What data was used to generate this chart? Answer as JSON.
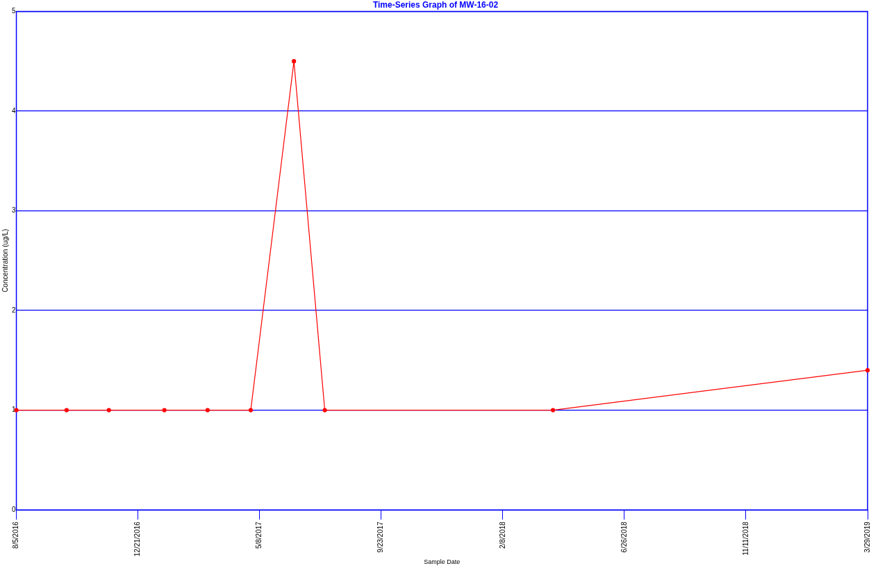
{
  "chart_data": {
    "type": "line",
    "title": "Time-Series Graph of MW-16-02",
    "xlabel": "Sample Date",
    "ylabel": "Concentration (ug/L)",
    "x": [
      "2016-08-05",
      "2016-10-01",
      "2016-11-18",
      "2017-01-20",
      "2017-03-10",
      "2017-04-28",
      "2017-06-16",
      "2017-07-21",
      "2018-04-06",
      "2019-03-29"
    ],
    "series": [
      {
        "color": "#ff0000",
        "values": [
          1,
          1,
          1,
          1,
          1,
          1,
          4.5,
          1,
          1,
          1.4
        ]
      }
    ],
    "xlim": [
      "2016-08-05",
      "2019-03-29"
    ],
    "xticks": [
      {
        "value": "2016-08-05",
        "label": "8/5/2016"
      },
      {
        "value": "2016-12-21",
        "label": "12/21/2016"
      },
      {
        "value": "2017-05-08",
        "label": "5/8/2017"
      },
      {
        "value": "2017-09-23",
        "label": "9/23/2017"
      },
      {
        "value": "2018-02-08",
        "label": "2/8/2018"
      },
      {
        "value": "2018-06-26",
        "label": "6/26/2018"
      },
      {
        "value": "2018-11-11",
        "label": "11/11/2018"
      },
      {
        "value": "2019-03-29",
        "label": "3/29/2019"
      }
    ],
    "ylim": [
      0,
      5
    ],
    "yticks": [
      0,
      1,
      2,
      3,
      4,
      5
    ],
    "grid": "y",
    "marker": "circle",
    "line_style": "solid",
    "legend": false
  }
}
